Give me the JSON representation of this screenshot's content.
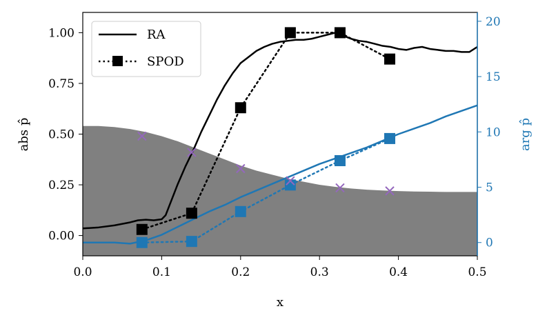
{
  "chart_data": {
    "type": "line",
    "xlabel": "x",
    "ylabel_left": "abs p̂",
    "ylabel_right": "arg p̂",
    "xlim": [
      0.0,
      0.5
    ],
    "ylim_left": [
      -0.1,
      1.1
    ],
    "ylim_right": [
      -1.2,
      20.8
    ],
    "xticks": [
      "0.0",
      "0.1",
      "0.2",
      "0.3",
      "0.4",
      "0.5"
    ],
    "yticks_left": [
      "0.00",
      "0.25",
      "0.50",
      "0.75",
      "1.00"
    ],
    "yticks_right": [
      "0",
      "5",
      "10",
      "15",
      "20"
    ],
    "colors": {
      "black": "#000000",
      "blue": "#1f77b4",
      "purple": "#9467bd",
      "gray": "#808080"
    },
    "legend": {
      "position": "top-left",
      "entries": [
        "RA",
        "SPOD"
      ]
    },
    "shaded_area": {
      "name": "background profile",
      "x": [
        0.0,
        0.02,
        0.04,
        0.06,
        0.08,
        0.1,
        0.12,
        0.14,
        0.16,
        0.18,
        0.2,
        0.22,
        0.24,
        0.26,
        0.28,
        0.3,
        0.32,
        0.34,
        0.36,
        0.38,
        0.4,
        0.42,
        0.44,
        0.46,
        0.48,
        0.5
      ],
      "y": [
        0.54,
        0.54,
        0.535,
        0.525,
        0.51,
        0.49,
        0.465,
        0.435,
        0.405,
        0.375,
        0.345,
        0.32,
        0.3,
        0.28,
        0.265,
        0.25,
        0.24,
        0.232,
        0.226,
        0.222,
        0.219,
        0.217,
        0.216,
        0.215,
        0.215,
        0.215
      ]
    },
    "series": [
      {
        "name": "RA abs",
        "axis": "left",
        "style": "solid",
        "color": "#000000",
        "x": [
          0.0,
          0.02,
          0.04,
          0.06,
          0.07,
          0.08,
          0.09,
          0.1,
          0.105,
          0.11,
          0.12,
          0.13,
          0.14,
          0.15,
          0.16,
          0.17,
          0.18,
          0.19,
          0.2,
          0.21,
          0.22,
          0.23,
          0.24,
          0.25,
          0.26,
          0.27,
          0.28,
          0.29,
          0.3,
          0.31,
          0.32,
          0.33,
          0.34,
          0.35,
          0.36,
          0.37,
          0.38,
          0.39,
          0.4,
          0.41,
          0.42,
          0.43,
          0.44,
          0.45,
          0.46,
          0.47,
          0.48,
          0.49,
          0.5
        ],
        "y": [
          0.035,
          0.04,
          0.05,
          0.065,
          0.075,
          0.078,
          0.075,
          0.08,
          0.1,
          0.15,
          0.25,
          0.34,
          0.42,
          0.51,
          0.59,
          0.67,
          0.74,
          0.8,
          0.85,
          0.88,
          0.91,
          0.93,
          0.945,
          0.955,
          0.96,
          0.965,
          0.965,
          0.97,
          0.98,
          0.99,
          1.0,
          0.985,
          0.97,
          0.96,
          0.955,
          0.945,
          0.935,
          0.93,
          0.92,
          0.915,
          0.925,
          0.93,
          0.92,
          0.915,
          0.91,
          0.91,
          0.905,
          0.905,
          0.93
        ]
      },
      {
        "name": "RA arg",
        "axis": "right",
        "style": "solid",
        "color": "#1f77b4",
        "x": [
          0.0,
          0.02,
          0.04,
          0.06,
          0.08,
          0.1,
          0.12,
          0.14,
          0.16,
          0.18,
          0.2,
          0.22,
          0.24,
          0.26,
          0.28,
          0.3,
          0.32,
          0.34,
          0.36,
          0.38,
          0.4,
          0.42,
          0.44,
          0.46,
          0.48,
          0.5
        ],
        "y": [
          0.0,
          0.0,
          0.0,
          -0.1,
          0.2,
          0.7,
          1.4,
          2.1,
          2.8,
          3.4,
          4.1,
          4.7,
          5.3,
          5.9,
          6.5,
          7.1,
          7.6,
          8.1,
          8.6,
          9.2,
          9.8,
          10.3,
          10.8,
          11.4,
          11.9,
          12.4
        ]
      },
      {
        "name": "SPOD abs",
        "axis": "left",
        "style": "dotted",
        "marker": "square",
        "color": "#000000",
        "x": [
          0.075,
          0.138,
          0.2,
          0.263,
          0.326,
          0.389
        ],
        "y": [
          0.03,
          0.11,
          0.63,
          1.0,
          1.0,
          0.87
        ]
      },
      {
        "name": "SPOD arg",
        "axis": "right",
        "style": "dotted",
        "marker": "square",
        "color": "#1f77b4",
        "x": [
          0.075,
          0.138,
          0.2,
          0.263,
          0.326,
          0.389
        ],
        "y": [
          0.0,
          0.1,
          2.8,
          5.2,
          7.4,
          9.4
        ]
      },
      {
        "name": "profile samples",
        "axis": "left",
        "style": "none",
        "marker": "x",
        "color": "#9467bd",
        "x": [
          0.075,
          0.138,
          0.2,
          0.263,
          0.326,
          0.389
        ],
        "y": [
          0.49,
          0.41,
          0.33,
          0.27,
          0.235,
          0.22
        ]
      }
    ]
  }
}
